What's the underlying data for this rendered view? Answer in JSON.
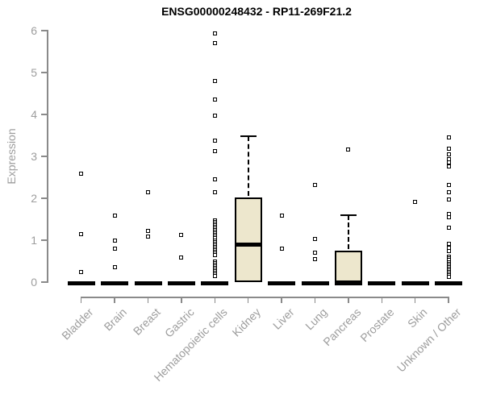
{
  "chart_data": {
    "type": "boxplot",
    "title": "ENSG00000248432 - RP11-269F21.2",
    "ylabel": "Expression",
    "xlabel": "",
    "ylim": [
      0,
      6
    ],
    "yticks": [
      0,
      1,
      2,
      3,
      4,
      5,
      6
    ],
    "grid": "off",
    "legend": "none",
    "colors": {
      "box_fill": "#EDE7CD",
      "box_border": "#000000",
      "axis_line": "#8a8a8a",
      "axis_text": "#9d9d9d",
      "title_text": "#000000"
    },
    "categories": [
      "Bladder",
      "Brain",
      "Breast",
      "Gastric",
      "Hematopoietic cells",
      "Kidney",
      "Liver",
      "Lung",
      "Pancreas",
      "Prostate",
      "Skin",
      "Unknown / Other"
    ],
    "series": [
      {
        "label": "Bladder",
        "q1": 0,
        "median": 0,
        "q3": 0,
        "whisker_high": 0,
        "outliers": [
          2.58,
          1.14,
          0.24
        ]
      },
      {
        "label": "Brain",
        "q1": 0,
        "median": 0,
        "q3": 0,
        "whisker_high": 0,
        "outliers": [
          1.58,
          1.0,
          0.79,
          0.35
        ]
      },
      {
        "label": "Breast",
        "q1": 0,
        "median": 0,
        "q3": 0,
        "whisker_high": 0,
        "outliers": [
          2.14,
          1.23,
          1.08
        ]
      },
      {
        "label": "Gastric",
        "q1": 0,
        "median": 0,
        "q3": 0,
        "whisker_high": 0,
        "outliers": [
          1.12,
          0.58
        ]
      },
      {
        "label": "Hematopoietic cells",
        "q1": 0,
        "median": 0,
        "q3": 0,
        "whisker_high": 0,
        "outliers": [
          5.93,
          5.71,
          4.79,
          4.35,
          3.97,
          3.38,
          3.13,
          2.46,
          2.15,
          1.48,
          1.44,
          1.4,
          1.36,
          1.32,
          1.28,
          1.24,
          1.2,
          1.16,
          1.12,
          1.08,
          1.04,
          1.0,
          0.96,
          0.92,
          0.88,
          0.84,
          0.8,
          0.76,
          0.72,
          0.68,
          0.65,
          0.5,
          0.46,
          0.42,
          0.38,
          0.34,
          0.3,
          0.26,
          0.22,
          0.18,
          0.14
        ]
      },
      {
        "label": "Kidney",
        "q1": 0,
        "median": 0.93,
        "q3": 2.02,
        "whisker_high": 3.49,
        "outliers": []
      },
      {
        "label": "Liver",
        "q1": 0,
        "median": 0,
        "q3": 0,
        "whisker_high": 0,
        "outliers": [
          1.58,
          0.8
        ]
      },
      {
        "label": "Lung",
        "q1": 0,
        "median": 0,
        "q3": 0,
        "whisker_high": 0,
        "outliers": [
          2.31,
          1.03,
          0.71,
          0.54
        ]
      },
      {
        "label": "Pancreas",
        "q1": 0,
        "median": 0,
        "q3": 0.75,
        "whisker_high": 1.6,
        "outliers": [
          3.17
        ]
      },
      {
        "label": "Prostate",
        "q1": 0,
        "median": 0,
        "q3": 0,
        "whisker_high": 0,
        "outliers": []
      },
      {
        "label": "Skin",
        "q1": 0,
        "median": 0,
        "q3": 0,
        "whisker_high": 0,
        "outliers": [
          1.92
        ]
      },
      {
        "label": "Unknown / Other",
        "q1": 0,
        "median": 0,
        "q3": 0,
        "whisker_high": 0,
        "outliers": [
          3.46,
          3.19,
          3.04,
          2.94,
          2.85,
          2.76,
          2.32,
          2.15,
          1.98,
          1.62,
          1.54,
          1.3,
          0.91,
          0.82,
          0.74,
          0.6,
          0.56,
          0.52,
          0.48,
          0.44,
          0.4,
          0.36,
          0.32,
          0.28,
          0.24,
          0.2,
          0.16,
          0.12
        ]
      }
    ]
  }
}
